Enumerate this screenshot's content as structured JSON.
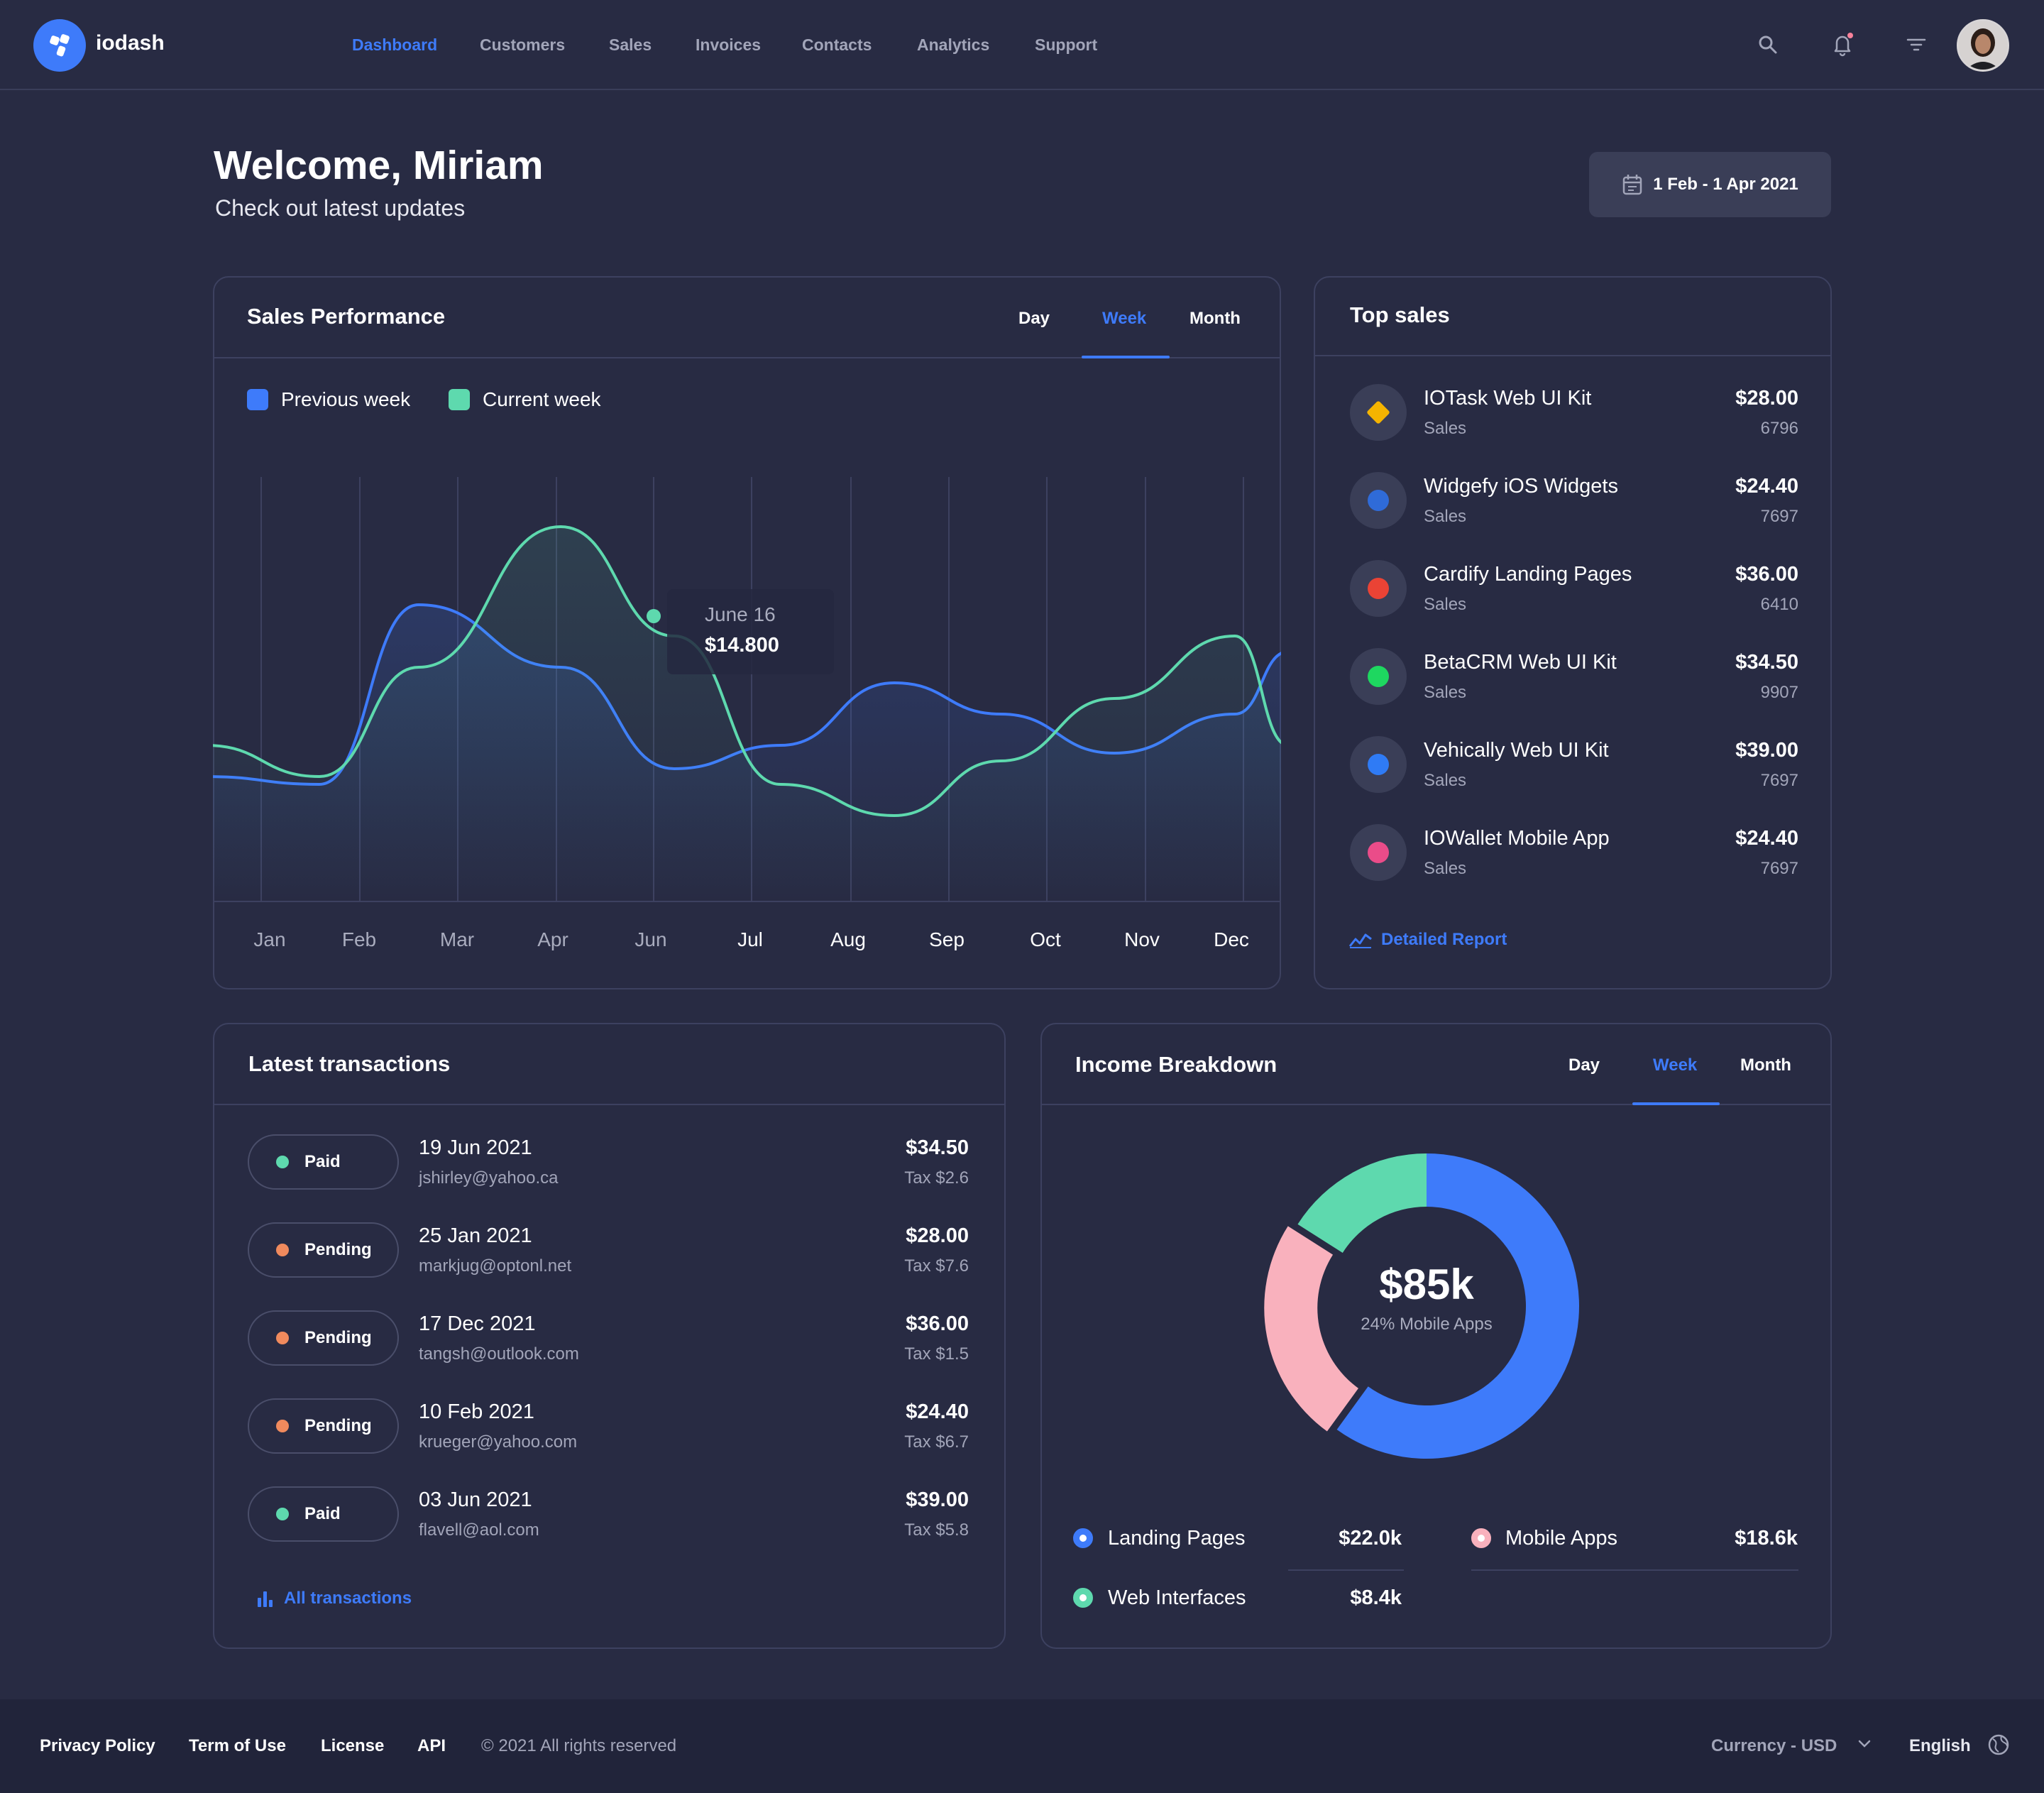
{
  "brand": {
    "name": "iodash",
    "accent": "#3e7bfa"
  },
  "nav": {
    "items": [
      {
        "label": "Dashboard",
        "active": true
      },
      {
        "label": "Customers"
      },
      {
        "label": "Sales"
      },
      {
        "label": "Invoices"
      },
      {
        "label": "Contacts"
      },
      {
        "label": "Analytics"
      },
      {
        "label": "Support"
      }
    ]
  },
  "header_icons": [
    "search-icon",
    "bell-icon",
    "filter-icon"
  ],
  "welcome": {
    "title": "Welcome, Miriam",
    "subtitle": "Check out latest updates"
  },
  "date_range": {
    "label": "1 Feb - 1 Apr 2021"
  },
  "sales_performance": {
    "title": "Sales Performance",
    "tabs": [
      "Day",
      "Week",
      "Month"
    ],
    "active_tab": "Week",
    "legend": [
      {
        "label": "Previous week",
        "color": "#3e7bfa"
      },
      {
        "label": "Current week",
        "color": "#5ed9ae"
      }
    ],
    "tooltip": {
      "date": "June 16",
      "value": "$14.800"
    }
  },
  "chart_data": {
    "type": "line",
    "categories": [
      "Jan",
      "Feb",
      "Mar",
      "Apr",
      "Jun",
      "Jul",
      "Aug",
      "Sep",
      "Oct",
      "Nov",
      "Dec"
    ],
    "series": [
      {
        "name": "Previous week",
        "color": "#3e7bfa",
        "values": [
          3,
          2.5,
          14,
          10,
          3.5,
          5,
          9,
          7,
          4.5,
          7,
          11
        ]
      },
      {
        "name": "Current week",
        "color": "#5ed9ae",
        "values": [
          5,
          3,
          10,
          19,
          12,
          2.5,
          0.5,
          4,
          8,
          12,
          5
        ]
      }
    ],
    "xlabel": "",
    "ylabel": "",
    "grid": true,
    "legend_position": "top-left"
  },
  "top_sales": {
    "title": "Top sales",
    "items": [
      {
        "name": "IOTask Web UI Kit",
        "sub": "Sales",
        "price": "$28.00",
        "count": "6796",
        "icon": "sketch-icon",
        "color": "#f5b400"
      },
      {
        "name": "Widgefy iOS Widgets",
        "sub": "Sales",
        "price": "$24.40",
        "count": "7697",
        "icon": "paypal-icon",
        "color": "#2f6bd8"
      },
      {
        "name": "Cardify Landing Pages",
        "sub": "Sales",
        "price": "$36.00",
        "count": "6410",
        "icon": "google-icon",
        "color": "#ea4335"
      },
      {
        "name": "BetaCRM Web UI Kit",
        "sub": "Sales",
        "price": "$34.50",
        "count": "9907",
        "icon": "spotify-icon",
        "color": "#1ed760"
      },
      {
        "name": "Vehically Web UI Kit",
        "sub": "Sales",
        "price": "$39.00",
        "count": "7697",
        "icon": "dropbox-icon",
        "color": "#2f7bf5"
      },
      {
        "name": "IOWallet Mobile App",
        "sub": "Sales",
        "price": "$24.40",
        "count": "7697",
        "icon": "dribbble-icon",
        "color": "#ea4c89"
      }
    ],
    "link": "Detailed Report"
  },
  "transactions": {
    "title": "Latest transactions",
    "rows": [
      {
        "status": "Paid",
        "status_color": "#5ed9ae",
        "date": "19 Jun 2021",
        "email": "jshirley@yahoo.ca",
        "amount": "$34.50",
        "tax": "Tax $2.6"
      },
      {
        "status": "Pending",
        "status_color": "#f08a5d",
        "date": "25 Jan 2021",
        "email": "markjug@optonl.net",
        "amount": "$28.00",
        "tax": "Tax $7.6"
      },
      {
        "status": "Pending",
        "status_color": "#f08a5d",
        "date": "17 Dec 2021",
        "email": "tangsh@outlook.com",
        "amount": "$36.00",
        "tax": "Tax  $1.5"
      },
      {
        "status": "Pending",
        "status_color": "#f08a5d",
        "date": "10 Feb 2021",
        "email": "krueger@yahoo.com",
        "amount": "$24.40",
        "tax": "Tax $6.7"
      },
      {
        "status": "Paid",
        "status_color": "#5ed9ae",
        "date": "03 Jun 2021",
        "email": "flavell@aol.com",
        "amount": "$39.00",
        "tax": "Tax $5.8"
      }
    ],
    "link": "All transactions"
  },
  "income": {
    "title": "Income Breakdown",
    "tabs": [
      "Day",
      "Week",
      "Month"
    ],
    "active_tab": "Week",
    "center_value": "$85k",
    "center_caption": "24% Mobile Apps",
    "segments": [
      {
        "label": "Landing Pages",
        "value": "$22.0k",
        "color": "#3e7bfa",
        "share": 0.6
      },
      {
        "label": "Mobile Apps",
        "value": "$18.6k",
        "color": "#f9b1bd",
        "share": 0.24
      },
      {
        "label": "Web Interfaces",
        "value": "$8.4k",
        "color": "#5ed9ae",
        "share": 0.16
      }
    ]
  },
  "footer": {
    "links": [
      "Privacy Policy",
      "Term of Use",
      "License",
      "API"
    ],
    "copyright": "© 2021 All rights reserved",
    "currency": "Currency - USD",
    "language": "English"
  }
}
